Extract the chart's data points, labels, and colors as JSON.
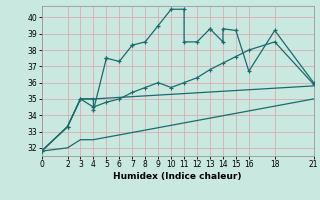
{
  "xlabel": "Humidex (Indice chaleur)",
  "bg_color": "#c8e8e0",
  "line_color": "#1a6b6b",
  "grid_major_color": "#e0a0a8",
  "grid_minor_color": "#e0a0a8",
  "xlim": [
    0,
    21
  ],
  "ylim": [
    31.5,
    40.7
  ],
  "yticks": [
    32,
    33,
    34,
    35,
    36,
    37,
    38,
    39,
    40
  ],
  "xticks": [
    0,
    2,
    3,
    4,
    5,
    6,
    7,
    8,
    9,
    10,
    11,
    12,
    13,
    14,
    15,
    16,
    18,
    21
  ],
  "s1_x": [
    0,
    2,
    3,
    4,
    4,
    5,
    5,
    6,
    7,
    7,
    8,
    9,
    10,
    11,
    11,
    12,
    13,
    13,
    14,
    14,
    15,
    16,
    18,
    21
  ],
  "s1_y": [
    31.8,
    33.3,
    35.0,
    35.0,
    34.3,
    37.5,
    37.5,
    37.3,
    38.3,
    38.3,
    38.5,
    39.5,
    40.5,
    40.5,
    38.5,
    38.5,
    39.3,
    39.3,
    38.5,
    39.3,
    39.2,
    36.7,
    39.2,
    36.0
  ],
  "s2_x": [
    0,
    2,
    3,
    4,
    5,
    6,
    7,
    8,
    9,
    10,
    11,
    12,
    13,
    14,
    15,
    16,
    18,
    21
  ],
  "s2_y": [
    31.8,
    33.3,
    35.0,
    34.5,
    34.8,
    35.0,
    35.4,
    35.7,
    36.0,
    35.7,
    36.0,
    36.3,
    36.8,
    37.2,
    37.6,
    38.0,
    38.5,
    35.9
  ],
  "s3_x": [
    0,
    2,
    3,
    4,
    21
  ],
  "s3_y": [
    31.8,
    33.3,
    35.0,
    35.0,
    35.8
  ],
  "s4_x": [
    0,
    2,
    3,
    4,
    21
  ],
  "s4_y": [
    31.8,
    32.0,
    32.5,
    32.5,
    35.0
  ]
}
